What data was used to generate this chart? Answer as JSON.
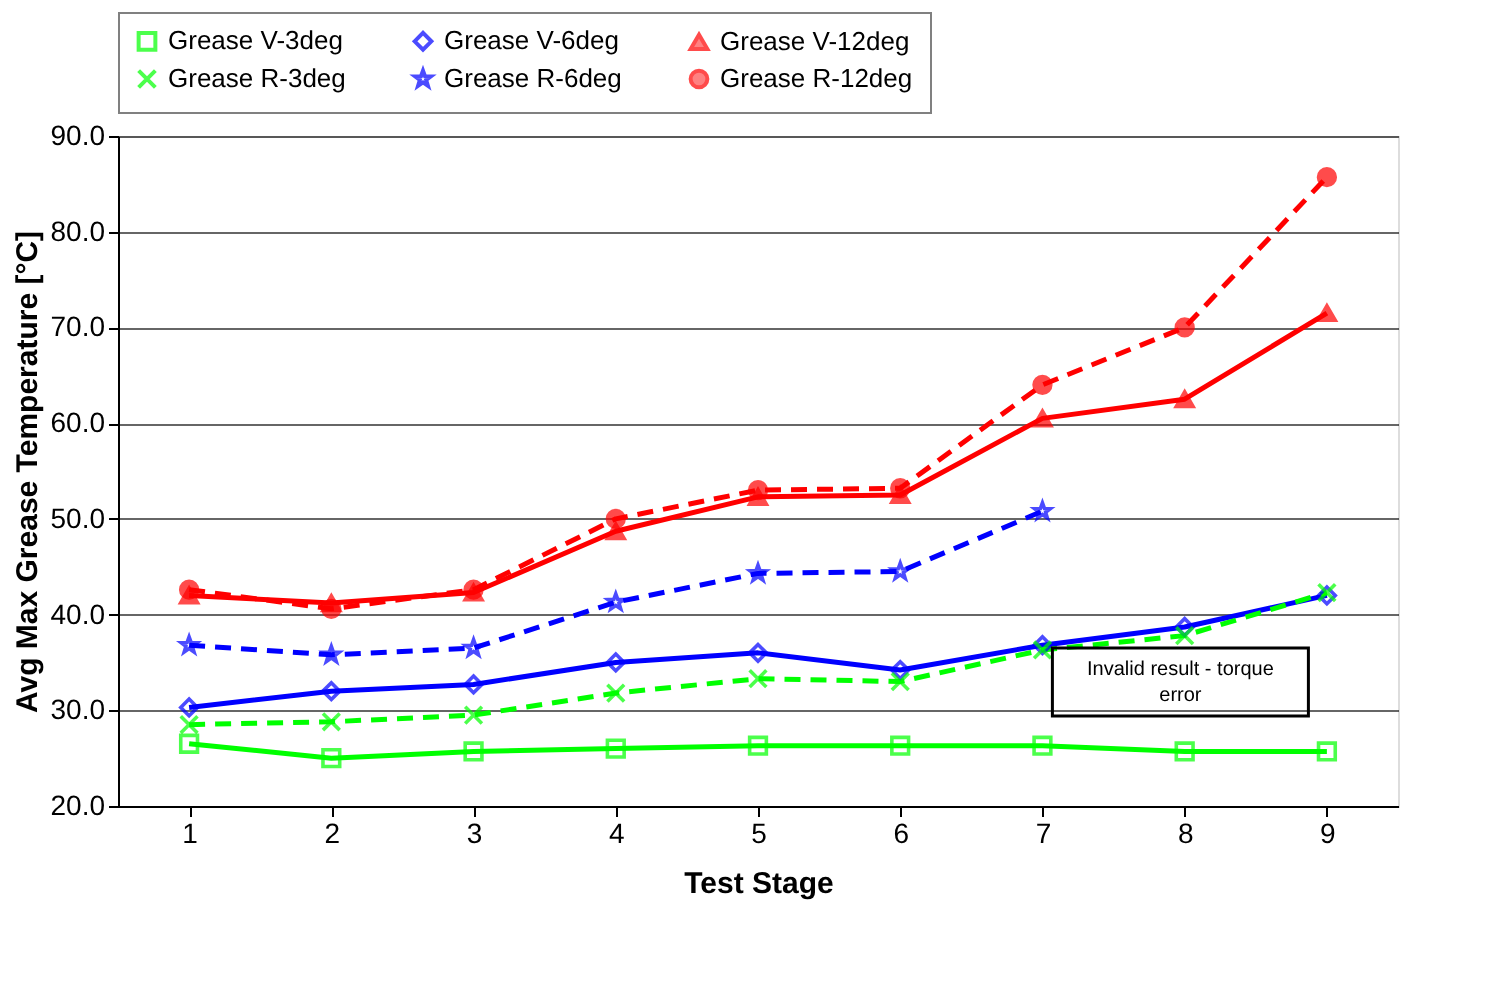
{
  "chart_data": {
    "type": "line",
    "xlabel": "Test Stage",
    "ylabel": "Avg Max Grease Temperature [°C]",
    "x": [
      1,
      2,
      3,
      4,
      5,
      6,
      7,
      8,
      9
    ],
    "xlim": [
      0.5,
      9.5
    ],
    "xticks": [
      1,
      2,
      3,
      4,
      5,
      6,
      7,
      8,
      9
    ],
    "ylim": [
      20,
      90
    ],
    "yticks": [
      {
        "value": 20,
        "label": "20.0"
      },
      {
        "value": 30,
        "label": "30.0"
      },
      {
        "value": 40,
        "label": "40.0"
      },
      {
        "value": 50,
        "label": "50.0"
      },
      {
        "value": 60,
        "label": "60.0"
      },
      {
        "value": 70,
        "label": "70.0"
      },
      {
        "value": 80,
        "label": "80.0"
      },
      {
        "value": 90,
        "label": "90.0"
      }
    ],
    "grid": "y",
    "legend": "top",
    "series": [
      {
        "name": "Grease V-3deg",
        "color": "#00ff00",
        "marker": "square",
        "line_style": "solid",
        "values": [
          26.5,
          25.0,
          25.7,
          26.0,
          26.3,
          26.3,
          26.3,
          25.7,
          25.7
        ]
      },
      {
        "name": "Grease V-6deg",
        "color": "#0000ff",
        "marker": "diamond",
        "line_style": "solid",
        "values": [
          30.3,
          32.0,
          32.7,
          35.0,
          36.0,
          34.2,
          36.8,
          38.7,
          42.0
        ]
      },
      {
        "name": "Grease V-12deg",
        "color": "#ff0000",
        "marker": "triangle",
        "line_style": "solid",
        "values": [
          42.0,
          41.2,
          42.3,
          48.7,
          52.3,
          52.5,
          60.5,
          62.5,
          71.5
        ]
      },
      {
        "name": "Grease R-3deg",
        "color": "#00ff00",
        "marker": "cross",
        "line_style": "dashed",
        "values": [
          28.5,
          28.8,
          29.5,
          31.8,
          33.3,
          33.0,
          36.3,
          37.8,
          42.3
        ]
      },
      {
        "name": "Grease R-6deg",
        "color": "#0000ff",
        "marker": "star",
        "line_style": "dashed",
        "values": [
          36.8,
          35.8,
          36.5,
          41.3,
          44.3,
          44.5,
          50.8,
          null,
          null
        ]
      },
      {
        "name": "Grease R-12deg",
        "color": "#ff0000",
        "marker": "circle",
        "line_style": "dashed",
        "values": [
          42.6,
          40.6,
          42.6,
          50.0,
          53.0,
          53.2,
          64.0,
          70.0,
          85.7
        ]
      }
    ],
    "annotations": [
      "Invalid result - torque error"
    ]
  }
}
